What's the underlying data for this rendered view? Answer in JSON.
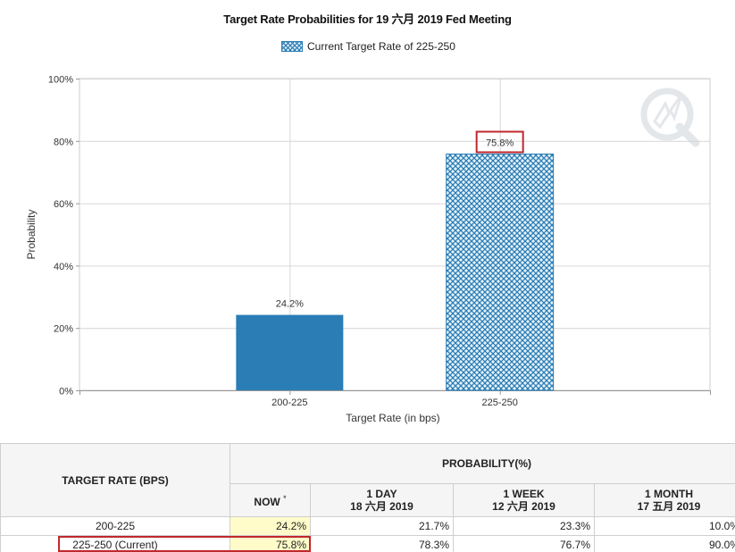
{
  "chart_data": {
    "type": "bar",
    "title": "Target Rate Probabilities for 19 六月 2019 Fed Meeting",
    "legend": {
      "label": "Current Target Rate of 225-250",
      "placement": "top-center"
    },
    "categories": [
      "200-225",
      "225-250"
    ],
    "values": [
      24.2,
      75.8
    ],
    "value_labels": [
      "24.2%",
      "75.8%"
    ],
    "bar_styles": [
      "solid",
      "crosshatch"
    ],
    "highlighted_label": "75.8%",
    "xlabel": "Target Rate (in bps)",
    "ylabel": "Probability",
    "ylim": [
      0,
      100
    ],
    "yticks": [
      "0%",
      "20%",
      "40%",
      "60%",
      "80%",
      "100%"
    ],
    "ytick_values": [
      0,
      20,
      40,
      60,
      80,
      100
    ],
    "grid": true,
    "colors": {
      "bar": "#2a7db5",
      "hatch_bg": "#e6f2f7",
      "hatch": "#2a7db5",
      "highlight_border": "#c0282d"
    }
  },
  "table": {
    "header": {
      "target_rate": "TARGET RATE (BPS)",
      "probability": "PROBABILITY(%)",
      "now": "NOW",
      "now_mark": "*",
      "cols": [
        {
          "label": "1 DAY",
          "date": "18 六月 2019"
        },
        {
          "label": "1 WEEK",
          "date": "12 六月 2019"
        },
        {
          "label": "1 MONTH",
          "date": "17 五月 2019"
        }
      ]
    },
    "rows": [
      {
        "rate": "200-225",
        "now": "24.2%",
        "day": "21.7%",
        "week": "23.3%",
        "month": "10.0%"
      },
      {
        "rate": "225-250 (Current)",
        "now": "75.8%",
        "day": "78.3%",
        "week": "76.7%",
        "month": "90.0%"
      }
    ]
  },
  "watermark_icon": "quikstrike-logo-icon"
}
